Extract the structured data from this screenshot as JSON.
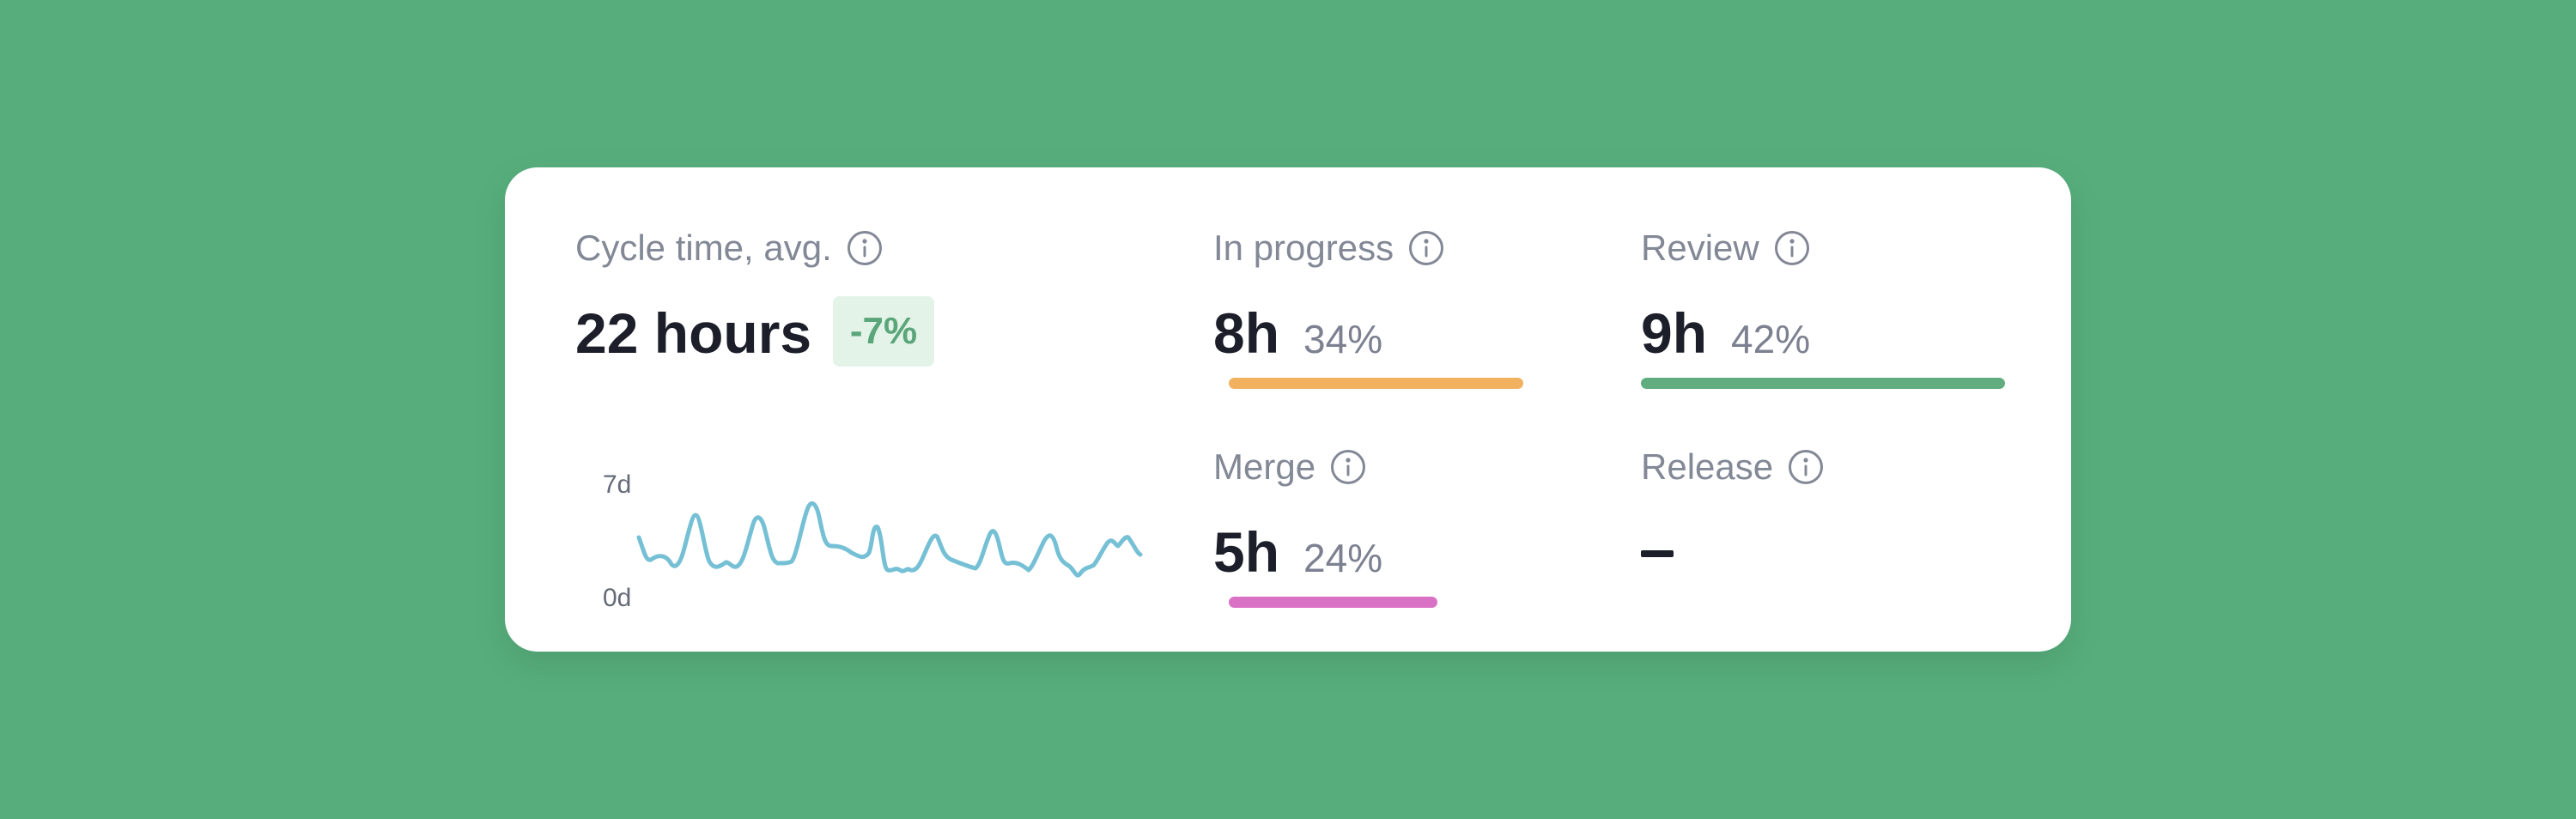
{
  "background_color": "#57ae7c",
  "cycle": {
    "label": "Cycle time, avg.",
    "value": "22 hours",
    "delta": "-7%",
    "delta_color": "#5aa67a",
    "delta_bg": "#e3f3e8",
    "sparkline_color": "#76c0d5",
    "y_top_label": "7d",
    "y_bottom_label": "0d"
  },
  "stages": {
    "in_progress": {
      "label": "In progress",
      "value": "8h",
      "percent": "34%",
      "share": 0.34,
      "color": "#f2b15f"
    },
    "review": {
      "label": "Review",
      "value": "9h",
      "percent": "42%",
      "share": 0.42,
      "color": "#61ad80"
    },
    "merge": {
      "label": "Merge",
      "value": "5h",
      "percent": "24%",
      "share": 0.24,
      "color": "#d972c4"
    },
    "release": {
      "label": "Release",
      "value": "–"
    }
  },
  "icons": {
    "info": "info-circle-icon"
  }
}
